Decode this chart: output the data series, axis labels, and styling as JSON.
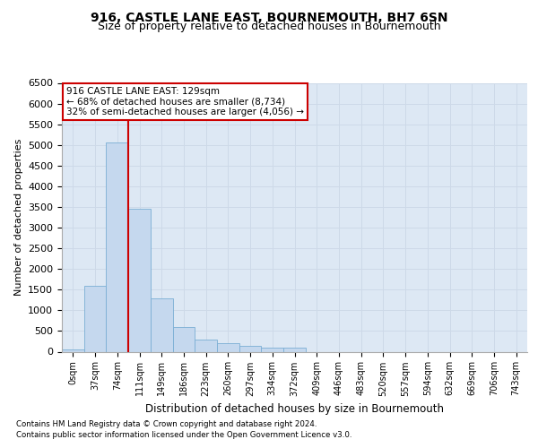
{
  "title": "916, CASTLE LANE EAST, BOURNEMOUTH, BH7 6SN",
  "subtitle": "Size of property relative to detached houses in Bournemouth",
  "xlabel": "Distribution of detached houses by size in Bournemouth",
  "ylabel": "Number of detached properties",
  "categories": [
    "0sqm",
    "37sqm",
    "74sqm",
    "111sqm",
    "149sqm",
    "186sqm",
    "223sqm",
    "260sqm",
    "297sqm",
    "334sqm",
    "372sqm",
    "409sqm",
    "446sqm",
    "483sqm",
    "520sqm",
    "557sqm",
    "594sqm",
    "632sqm",
    "669sqm",
    "706sqm",
    "743sqm"
  ],
  "bar_values": [
    50,
    1600,
    5050,
    3450,
    1300,
    600,
    290,
    200,
    150,
    90,
    100,
    0,
    0,
    0,
    0,
    0,
    0,
    0,
    0,
    0,
    0
  ],
  "bar_color": "#c5d8ee",
  "bar_edge_color": "#7aaed4",
  "vline_color": "#cc0000",
  "vline_pos": 2.5,
  "annotation_text": "916 CASTLE LANE EAST: 129sqm\n← 68% of detached houses are smaller (8,734)\n32% of semi-detached houses are larger (4,056) →",
  "annotation_box_color": "#ffffff",
  "annotation_box_edge_color": "#cc0000",
  "ylim": [
    0,
    6500
  ],
  "yticks": [
    0,
    500,
    1000,
    1500,
    2000,
    2500,
    3000,
    3500,
    4000,
    4500,
    5000,
    5500,
    6000,
    6500
  ],
  "grid_color": "#cdd9e8",
  "background_color": "#dde8f4",
  "footer_line1": "Contains HM Land Registry data © Crown copyright and database right 2024.",
  "footer_line2": "Contains public sector information licensed under the Open Government Licence v3.0.",
  "title_fontsize": 10,
  "subtitle_fontsize": 9
}
